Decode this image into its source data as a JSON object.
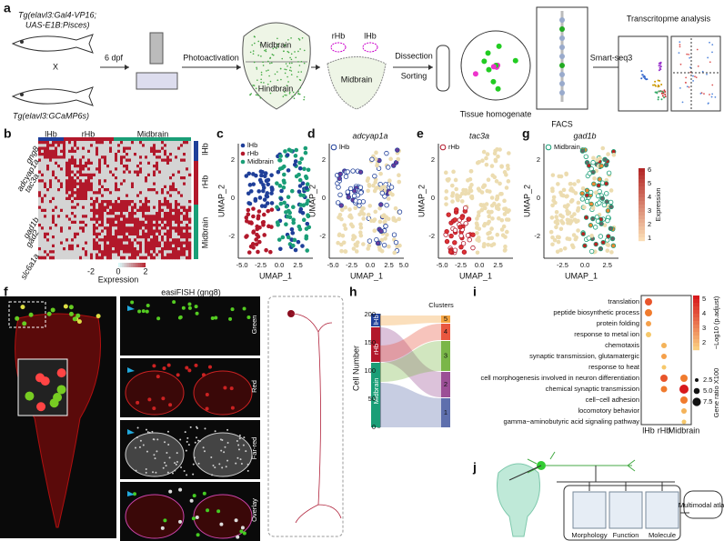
{
  "a": {
    "label": "a",
    "tg1": "Tg(elavl3:Gal4-VP16;",
    "tg1b": "UAS-E1B:Pisces)",
    "cross": "X",
    "tg2": "Tg(elavl3:GCaMP6s)",
    "age": "6 dpf",
    "photo": "Photoactivation",
    "midbrain": "Midbrain",
    "hindbrain": "Hindbrain",
    "rhb": "rHb",
    "lhb": "lHb",
    "midbrain2": "Midbrain",
    "dissection": "Dissection",
    "sorting": "Sorting",
    "homogenate": "Tissue homogenate",
    "facs": "FACS",
    "smart": "Smart-seq3",
    "analysis": "Transcritopme analysis"
  },
  "b": {
    "label": "b",
    "top": [
      "lHb",
      "rHb",
      "Midbrain"
    ],
    "genes": [
      "gng8",
      "adcyap1a",
      "tac3a",
      "gad1b",
      "gad2",
      "slc6a1a"
    ],
    "side": [
      "lHb",
      "rHb",
      "Midbrain"
    ],
    "scale": [
      "-2",
      "0",
      "2"
    ],
    "scale_title": "Expression"
  },
  "c": {
    "label": "c",
    "legend": [
      "lHb",
      "rHb",
      "Midbrain"
    ],
    "xlabel": "UMAP_1",
    "ylabel": "UMAP_2",
    "xticks": [
      "-5.0",
      "-2.5",
      "0.0",
      "2.5"
    ],
    "yticks": [
      "2",
      "0",
      "-2"
    ]
  },
  "d": {
    "label": "d",
    "title": "adcyap1a",
    "legend": "lHb",
    "xlabel": "UMAP_1",
    "ylabel": "UMAP_2",
    "xticks": [
      "-5.0",
      "-2.5",
      "0.0",
      "2.5",
      "5.0"
    ],
    "yticks": [
      "2",
      "0",
      "-2"
    ]
  },
  "e": {
    "label": "e",
    "title": "tac3a",
    "legend": "rHb",
    "xlabel": "UMAP_1",
    "ylabel": "UMAP_2",
    "xticks": [
      "-5.0",
      "-2.5",
      "0.0",
      "2.5"
    ],
    "yticks": [
      "2",
      "0",
      "-2"
    ]
  },
  "g": {
    "label": "g",
    "title": "gad1b",
    "legend": "Midbrain",
    "xlabel": "UMAP_1",
    "ylabel": "UMAP_2",
    "xticks": [
      "-2.5",
      "0.0",
      "2.5"
    ],
    "yticks": [
      "2",
      "0",
      "-2"
    ],
    "scale": [
      "6",
      "5",
      "4",
      "3",
      "2",
      "1"
    ],
    "scale_title": "Expression"
  },
  "f": {
    "label": "f",
    "title": "easiFISH (gng8)",
    "channels": [
      "Green",
      "Red",
      "Far-red",
      "Overlay"
    ]
  },
  "h": {
    "label": "h",
    "ylabel": "Cell Number",
    "yticks": [
      "0",
      "50",
      "100",
      "150",
      "200"
    ],
    "left": [
      "lHb",
      "rHb",
      "Midbrain"
    ],
    "clusters_title": "Clusters",
    "clusters": [
      "5",
      "4",
      "3",
      "2",
      "1"
    ]
  },
  "i": {
    "label": "i",
    "terms": [
      "translation",
      "peptide biosynthetic process",
      "protein folding",
      "response to metal ion",
      "chemotaxis",
      "synaptic transmission, glutamatergic",
      "response to heat",
      "cell morphogenesis involved in neuron differentiation",
      "chemical synaptic transmission",
      "cell−cell adhesion",
      "locomotory behavior",
      "gamma−aminobutyric acid signaling pathway"
    ],
    "groups": [
      "lHb",
      "rHb",
      "Midbrain"
    ],
    "color_title": "−Log10 (p.adjust)",
    "color_ticks": [
      "5",
      "4",
      "3",
      "2"
    ],
    "size_title": "Gene ratio X100",
    "size_ticks": [
      "2.5",
      "5.0",
      "7.5"
    ]
  },
  "j": {
    "label": "j",
    "boxes": [
      "Morphology",
      "Function",
      "Molecule"
    ],
    "atlas": "Multimodal atlas"
  }
}
